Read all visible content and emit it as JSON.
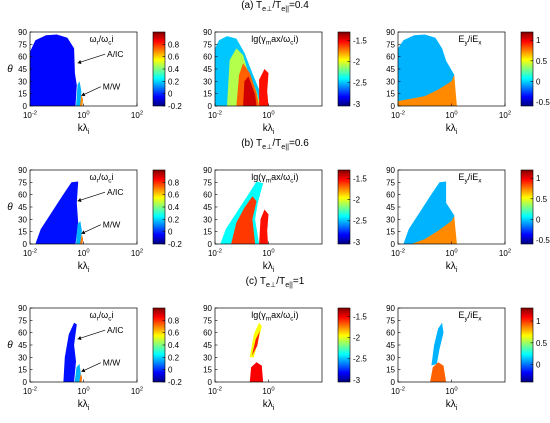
{
  "figure": {
    "row_titles": [
      "(a) T_{e⊥}/T_{e||}=0.4",
      "(b) T_{e⊥}/T_{e||}=0.6",
      "(c) T_{e⊥}/T_{e||}=1"
    ]
  },
  "chart_data": [
    {
      "type": "heatmap",
      "panel": "a1",
      "row": 0,
      "col": 0,
      "in_title": "ω_r/ω_ci",
      "xlabel": "kλ_i",
      "ylabel": "θ",
      "x_scale": "log",
      "xlim": [
        0.01,
        100
      ],
      "x_ticks": [
        "10^{-2}",
        "10^{0}",
        "10^{2}"
      ],
      "ylim": [
        0,
        90
      ],
      "y_ticks": [
        "0",
        "15",
        "30",
        "45",
        "60",
        "75",
        "90"
      ],
      "colorbar": {
        "range": [
          -0.2,
          1.0
        ],
        "ticks": [
          "-0.2",
          "0",
          "0.2",
          "0.4",
          "0.6",
          "0.8"
        ]
      },
      "annotations": [
        "A/IC",
        "M/W"
      ]
    },
    {
      "type": "heatmap",
      "panel": "a2",
      "row": 0,
      "col": 1,
      "in_title": "lg(γ_max/ω_ci)",
      "xlabel": "kλ_i",
      "ylabel": "",
      "x_scale": "log",
      "xlim": [
        0.01,
        100
      ],
      "x_ticks": [
        "10^{-2}",
        "10^{0}"
      ],
      "ylim": [
        0,
        90
      ],
      "y_ticks": [
        "0",
        "15",
        "30",
        "45",
        "60",
        "75",
        "90"
      ],
      "colorbar": {
        "range": [
          -3.05,
          -1.3
        ],
        "ticks": [
          "-3",
          "-2.5",
          "-2",
          "-1.5"
        ]
      },
      "annotations": []
    },
    {
      "type": "heatmap",
      "panel": "a3",
      "row": 0,
      "col": 2,
      "in_title": "E_y/iE_x",
      "xlabel": "kλ_i",
      "ylabel": "",
      "x_scale": "log",
      "xlim": [
        0.01,
        100
      ],
      "x_ticks": [
        "10^{-2}",
        "10^{0}",
        "10^{2}"
      ],
      "ylim": [
        0,
        90
      ],
      "y_ticks": [
        "0",
        "15",
        "30",
        "45",
        "60",
        "75",
        "90"
      ],
      "colorbar": {
        "range": [
          -0.6,
          1.2
        ],
        "ticks": [
          "-0.5",
          "0",
          "0.5",
          "1"
        ]
      },
      "annotations": []
    },
    {
      "type": "heatmap",
      "panel": "b1",
      "row": 1,
      "col": 0,
      "in_title": "ω_r/ω_ci",
      "xlabel": "kλ_i",
      "ylabel": "θ",
      "x_scale": "log",
      "xlim": [
        0.01,
        100
      ],
      "x_ticks": [
        "10^{-2}",
        "10^{0}",
        "10^{2}"
      ],
      "ylim": [
        0,
        90
      ],
      "y_ticks": [
        "0",
        "15",
        "30",
        "45",
        "60",
        "75",
        "90"
      ],
      "colorbar": {
        "range": [
          -0.2,
          1.0
        ],
        "ticks": [
          "-0.2",
          "0",
          "0.2",
          "0.4",
          "0.6",
          "0.8"
        ]
      },
      "annotations": [
        "A/IC",
        "M/W"
      ]
    },
    {
      "type": "heatmap",
      "panel": "b2",
      "row": 1,
      "col": 1,
      "in_title": "lg(γ_max/ω_ci)",
      "xlabel": "kλ_i",
      "ylabel": "",
      "x_scale": "log",
      "xlim": [
        0.01,
        100
      ],
      "x_ticks": [
        "10^{-2}",
        "10^{0}"
      ],
      "ylim": [
        0,
        90
      ],
      "y_ticks": [
        "0",
        "15",
        "30",
        "45",
        "60",
        "75",
        "90"
      ],
      "colorbar": {
        "range": [
          -3.05,
          -1.3
        ],
        "ticks": [
          "-3",
          "-2.5",
          "-2",
          "-1.5"
        ]
      },
      "annotations": []
    },
    {
      "type": "heatmap",
      "panel": "b3",
      "row": 1,
      "col": 2,
      "in_title": "E_y/iE_x",
      "xlabel": "kλ_i",
      "ylabel": "",
      "x_scale": "log",
      "xlim": [
        0.01,
        100
      ],
      "x_ticks": [
        "10^{-2}",
        "10^{0}",
        "10^{2}"
      ],
      "ylim": [
        0,
        90
      ],
      "y_ticks": [
        "0",
        "15",
        "30",
        "45",
        "60",
        "75",
        "90"
      ],
      "colorbar": {
        "range": [
          -0.6,
          1.2
        ],
        "ticks": [
          "-0.5",
          "0",
          "0.5",
          "1"
        ]
      },
      "annotations": []
    },
    {
      "type": "heatmap",
      "panel": "c1",
      "row": 2,
      "col": 0,
      "in_title": "ω_r/ω_ci",
      "xlabel": "kλ_i",
      "ylabel": "θ",
      "x_scale": "log",
      "xlim": [
        0.01,
        100
      ],
      "x_ticks": [
        "10^{-2}",
        "10^{0}",
        "10^{2}"
      ],
      "ylim": [
        0,
        90
      ],
      "y_ticks": [
        "0",
        "15",
        "30",
        "45",
        "60",
        "75",
        "90"
      ],
      "colorbar": {
        "range": [
          -0.2,
          1.0
        ],
        "ticks": [
          "-0.2",
          "0",
          "0.2",
          "0.4",
          "0.6",
          "0.8"
        ]
      },
      "annotations": [
        "A/IC",
        "M/W"
      ]
    },
    {
      "type": "heatmap",
      "panel": "c2",
      "row": 2,
      "col": 1,
      "in_title": "lg(γ_max/ω_ci)",
      "xlabel": "kλ_i",
      "ylabel": "",
      "x_scale": "log",
      "xlim": [
        0.01,
        100
      ],
      "x_ticks": [
        "10^{-2}",
        "10^{0}"
      ],
      "ylim": [
        0,
        90
      ],
      "y_ticks": [
        "0",
        "15",
        "30",
        "45",
        "60",
        "75",
        "90"
      ],
      "colorbar": {
        "range": [
          -3.05,
          -1.3
        ],
        "ticks": [
          "-3",
          "-2.5",
          "-2",
          "-1.5"
        ]
      },
      "annotations": []
    },
    {
      "type": "heatmap",
      "panel": "c3",
      "row": 2,
      "col": 2,
      "in_title": "E_y/iE_x",
      "xlabel": "kλ_i",
      "ylabel": "",
      "x_scale": "log",
      "xlim": [
        0.01,
        100
      ],
      "x_ticks": [
        "10^{-2}",
        "10^{0}"
      ],
      "ylim": [
        0,
        90
      ],
      "y_ticks": [
        "0",
        "15",
        "30",
        "45",
        "60",
        "75",
        "90"
      ],
      "colorbar": {
        "range": [
          -0.4,
          1.3
        ],
        "ticks": [
          "0",
          "0.5",
          "1"
        ]
      },
      "annotations": []
    }
  ]
}
